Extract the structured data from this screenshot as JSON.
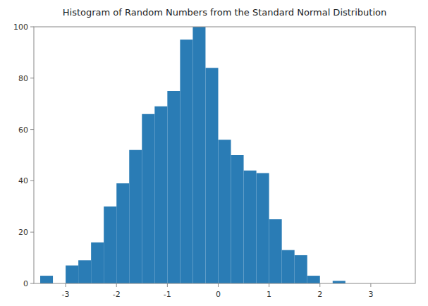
{
  "chart_data": {
    "type": "histogram",
    "title": "Histogram of Random Numbers from the Standard Normal Distribution",
    "bins": [
      -3.5,
      -3.25,
      -3,
      -2.75,
      -2.5,
      -2.25,
      -2,
      -1.75,
      -1.5,
      -1.25,
      -1,
      -0.75,
      -0.5,
      -0.25,
      0,
      0.25,
      0.5,
      0.75,
      1,
      1.25,
      1.5,
      1.75,
      2,
      2.25,
      2.5
    ],
    "values": [
      3,
      0,
      7,
      9,
      16,
      30,
      39,
      52,
      66,
      69,
      75,
      95,
      100,
      84,
      56,
      50,
      44,
      43,
      25,
      13,
      11,
      3,
      0,
      1
    ],
    "color": "#2a7cb5",
    "xlim": [
      -3.625,
      3.875
    ],
    "ylim": [
      0,
      100
    ],
    "xticks": [
      -3,
      -2,
      -1,
      0,
      1,
      2,
      3
    ],
    "yticks": [
      0,
      20,
      40,
      60,
      80,
      100
    ],
    "grid": false
  }
}
